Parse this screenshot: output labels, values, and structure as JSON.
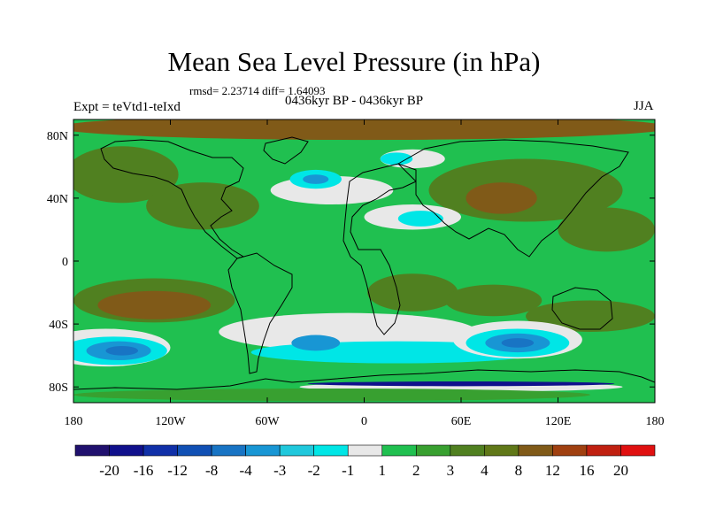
{
  "header": {
    "title": "Mean Sea Level Pressure (in hPa)",
    "stats": "rmsd= 2.23714  diff= 1.64093",
    "experiment": "Expt = teVtd1-teIxd",
    "period": "0436kyr BP - 0436kyr BP",
    "season": "JJA"
  },
  "axes": {
    "lat_labels": [
      "80N",
      "40N",
      "0",
      "40S",
      "80S"
    ],
    "lat_values": [
      80,
      40,
      0,
      -40,
      -80
    ],
    "lon_labels": [
      "180",
      "120W",
      "60W",
      "0",
      "60E",
      "120E",
      "180"
    ],
    "lon_values": [
      -180,
      -120,
      -60,
      0,
      60,
      120,
      180
    ],
    "lon_range": [
      -180,
      180
    ],
    "lat_range": [
      -90,
      90
    ]
  },
  "colorbar": {
    "colors": [
      "#20106e",
      "#10108c",
      "#1030a8",
      "#1050b4",
      "#1874c4",
      "#1896d4",
      "#20c8dc",
      "#00e6e6",
      "#e8e8e8",
      "#20c050",
      "#38a030",
      "#508020",
      "#607818",
      "#805a18",
      "#a04010",
      "#c02010",
      "#e01010"
    ],
    "labels": [
      "-20",
      "-16",
      "-12",
      "-8",
      "-4",
      "-3",
      "-2",
      "-1",
      "1",
      "2",
      "3",
      "4",
      "8",
      "12",
      "16",
      "20"
    ]
  },
  "field_colors": {
    "green": "#20c050",
    "olive": "#508020",
    "brown": "#805a18",
    "dark_green": "#38a030",
    "white": "#e8e8e8",
    "cyan": "#00e6e6",
    "mid_blue": "#1896d4",
    "blue": "#1874c4",
    "dark_blue": "#10108c"
  }
}
